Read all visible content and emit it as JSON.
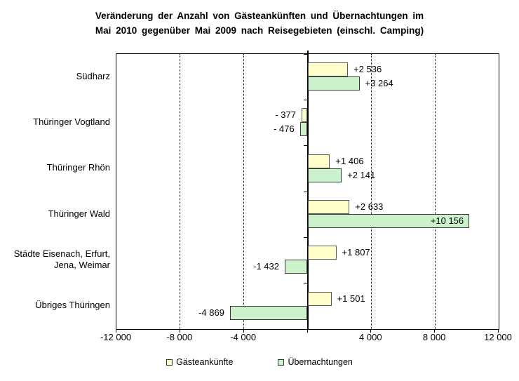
{
  "page": {
    "background": "#FFFFFF"
  },
  "chart_data": {
    "type": "bar",
    "orientation": "horizontal",
    "title": "Veränderung der Anzahl von Gästeankünften und Übernachtungen im Mai 2010 gegenüber Mai 2009 nach Reisegebieten (einschl. Camping)",
    "title_lines": [
      "Veränderung der Anzahl von Gästeankünften und Übernachtungen im",
      "Mai 2010 gegenüber Mai 2009 nach Reisegebieten (einschl. Camping)"
    ],
    "categories": [
      "Südharz",
      "Thüringer Vogtland",
      "Thüringer Rhön",
      "Thüringer Wald",
      "Städte Eisenach, Erfurt, Jena, Weimar",
      "Übriges Thüringen"
    ],
    "series": [
      {
        "name": "Gästeankünfte",
        "color": "#FFFFCC",
        "border_color": "#595959",
        "values": [
          2536,
          -377,
          1406,
          2633,
          1807,
          1501
        ],
        "labels": [
          "+2 536",
          "- 377",
          "+1 406",
          "+2 633",
          "+1 807",
          "+1 501"
        ]
      },
      {
        "name": "Übernachtungen",
        "color": "#CCF2CC",
        "border_color": "#3a3a3a",
        "values": [
          3264,
          -476,
          2141,
          10156,
          -1432,
          -4869
        ],
        "labels": [
          "+3 264",
          "- 476",
          "+2 141",
          "+10 156",
          "-1 432",
          "-4 869"
        ]
      }
    ],
    "xlim": [
      -12000,
      12000
    ],
    "x_ticks": [
      -12000,
      -8000,
      -4000,
      0,
      4000,
      8000,
      12000
    ],
    "x_tick_labels": [
      "-12 000",
      "-8 000",
      "-4 000",
      "",
      "4 000",
      "8 000",
      "12 000"
    ],
    "gridlines_at": [
      -8000,
      -4000,
      4000,
      8000
    ],
    "grid_style": "dotted",
    "legend_position": "bottom",
    "colors": {
      "axis": "#000000",
      "grid": "#000000",
      "text": "#000000"
    }
  }
}
